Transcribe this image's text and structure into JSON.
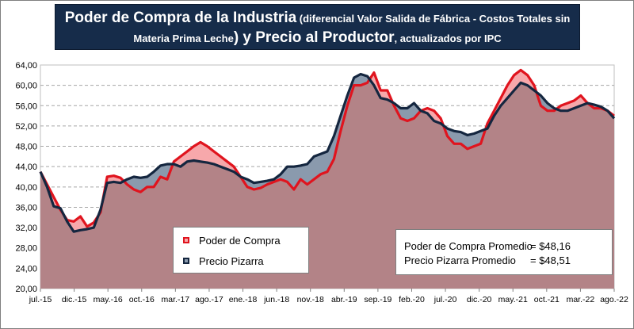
{
  "title": {
    "line1_bold": "Poder de Compra de la Industria",
    "line1_rest": " (diferencial Valor Salida de Fábrica - Costos Totales sin",
    "line2_start": "Materia Prima Leche",
    "line2_bold": ") y Precio al Productor",
    "line2_rest": ", actualizados por IPC"
  },
  "legend": {
    "series1": "Poder de Compra",
    "series2": "Precio Pizarra"
  },
  "averages": {
    "row1_label": "Poder de Compra Promedio",
    "row1_value": "= $48,16",
    "row2_label": "Precio Pizarra Promedio",
    "row2_value": "= $48,51"
  },
  "colors": {
    "poder_line": "#e0141e",
    "poder_fill": "#f7a8ab",
    "pizarra_line": "#14263f",
    "pizarra_fill": "#8a9aad",
    "overlap_fill": "#b38387"
  },
  "chart_data": {
    "type": "area",
    "x_tick_labels": [
      "jul.-15",
      "dic.-15",
      "may.-16",
      "oct.-16",
      "mar.-17",
      "ago.-17",
      "ene.-18",
      "jun.-18",
      "nov.-18",
      "abr.-19",
      "sep.-19",
      "feb.-20",
      "jul.-20",
      "dic.-20",
      "may.-21",
      "oct.-21",
      "mar.-22",
      "ago.-22"
    ],
    "y_tick_labels": [
      "20,00",
      "24,00",
      "28,00",
      "32,00",
      "36,00",
      "40,00",
      "44,00",
      "48,00",
      "52,00",
      "56,00",
      "60,00",
      "64,00"
    ],
    "ylim": [
      20,
      64
    ],
    "grid": true,
    "series": [
      {
        "name": "Poder de Compra",
        "values": [
          43.0,
          40.5,
          38.0,
          35.5,
          33.5,
          33.2,
          34.2,
          32.2,
          33.0,
          35.0,
          42.0,
          42.2,
          41.8,
          40.5,
          39.5,
          39.0,
          40.0,
          40.0,
          42.0,
          41.5,
          45.0,
          46.0,
          47.0,
          48.0,
          48.8,
          48.0,
          47.0,
          46.0,
          45.0,
          44.0,
          42.0,
          40.0,
          39.5,
          39.8,
          40.5,
          41.0,
          41.5,
          41.0,
          39.5,
          41.5,
          40.5,
          41.5,
          42.5,
          43.0,
          45.5,
          51.0,
          56.0,
          60.0,
          60.0,
          60.5,
          62.5,
          59.0,
          59.0,
          56.0,
          53.5,
          53.0,
          53.5,
          55.0,
          55.5,
          55.0,
          53.5,
          50.0,
          48.5,
          48.5,
          47.5,
          48.0,
          48.5,
          52.5,
          55.0,
          57.5,
          60.0,
          62.0,
          63.0,
          62.0,
          60.0,
          56.0,
          55.0,
          55.0,
          56.0,
          56.5,
          57.0,
          58.0,
          56.5,
          55.5,
          55.5,
          55.0,
          54.0
        ]
      },
      {
        "name": "Precio Pizarra",
        "values": [
          43.0,
          40.0,
          36.2,
          35.8,
          33.2,
          31.2,
          31.5,
          31.7,
          32.0,
          35.5,
          40.8,
          41.0,
          40.8,
          41.5,
          42.0,
          41.8,
          42.0,
          43.0,
          44.2,
          44.5,
          44.5,
          44.0,
          45.0,
          45.2,
          45.0,
          44.8,
          44.5,
          44.0,
          43.5,
          43.0,
          42.0,
          41.5,
          40.8,
          41.0,
          41.2,
          41.5,
          42.5,
          44.0,
          44.0,
          44.2,
          44.5,
          46.0,
          46.5,
          47.0,
          50.0,
          54.0,
          58.0,
          61.5,
          62.2,
          61.8,
          60.0,
          57.5,
          57.2,
          56.5,
          55.5,
          55.5,
          56.5,
          55.0,
          54.5,
          53.0,
          52.5,
          51.5,
          51.0,
          50.8,
          50.2,
          50.5,
          51.0,
          51.5,
          54.0,
          56.0,
          57.5,
          59.0,
          60.5,
          60.0,
          59.0,
          58.0,
          56.5,
          55.5,
          55.0,
          55.0,
          55.5,
          56.0,
          56.5,
          56.2,
          55.8,
          55.0,
          53.5
        ]
      }
    ]
  }
}
